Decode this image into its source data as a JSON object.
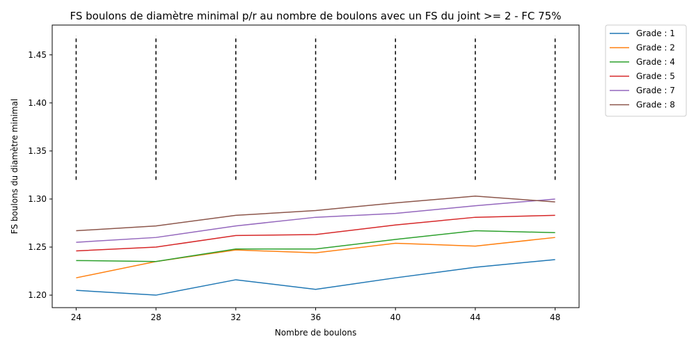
{
  "chart_data": {
    "type": "line",
    "title": "FS boulons de diamètre minimal p/r au nombre de boulons avec un FS du joint >= 2 - FC 75%",
    "xlabel": "Nombre de boulons",
    "ylabel": "FS boulons du diamètre minimal",
    "x": [
      24,
      28,
      32,
      36,
      40,
      44,
      48
    ],
    "xlim": [
      22.8,
      49.2
    ],
    "ylim": [
      1.187,
      1.481
    ],
    "xticks": [
      24,
      28,
      32,
      36,
      40,
      44,
      48
    ],
    "yticks": [
      1.2,
      1.25,
      1.3,
      1.35,
      1.4,
      1.45
    ],
    "ytick_labels": [
      "1.20",
      "1.25",
      "1.30",
      "1.35",
      "1.40",
      "1.45"
    ],
    "grid": false,
    "legend_position": "outside-top-right",
    "series": [
      {
        "name": "Grade : 1",
        "color": "#1f77b4",
        "values": [
          1.205,
          1.2,
          1.216,
          1.206,
          1.218,
          1.229,
          1.237
        ]
      },
      {
        "name": "Grade : 2",
        "color": "#ff7f0e",
        "values": [
          1.218,
          1.235,
          1.247,
          1.244,
          1.254,
          1.251,
          1.26
        ]
      },
      {
        "name": "Grade : 4",
        "color": "#2ca02c",
        "values": [
          1.236,
          1.235,
          1.248,
          1.248,
          1.258,
          1.267,
          1.265
        ]
      },
      {
        "name": "Grade : 5",
        "color": "#d62728",
        "values": [
          1.246,
          1.25,
          1.262,
          1.263,
          1.273,
          1.281,
          1.283
        ]
      },
      {
        "name": "Grade : 7",
        "color": "#9467bd",
        "values": [
          1.255,
          1.26,
          1.272,
          1.281,
          1.285,
          1.293,
          1.3
        ]
      },
      {
        "name": "Grade : 8",
        "color": "#8c564b",
        "values": [
          1.267,
          1.272,
          1.283,
          1.288,
          1.296,
          1.303,
          1.297
        ]
      }
    ],
    "vertical_markers": {
      "x": [
        24,
        28,
        32,
        36,
        40,
        44,
        48
      ],
      "y_range": [
        1.32,
        1.47
      ],
      "color": "#000000",
      "style": "dashed"
    }
  }
}
